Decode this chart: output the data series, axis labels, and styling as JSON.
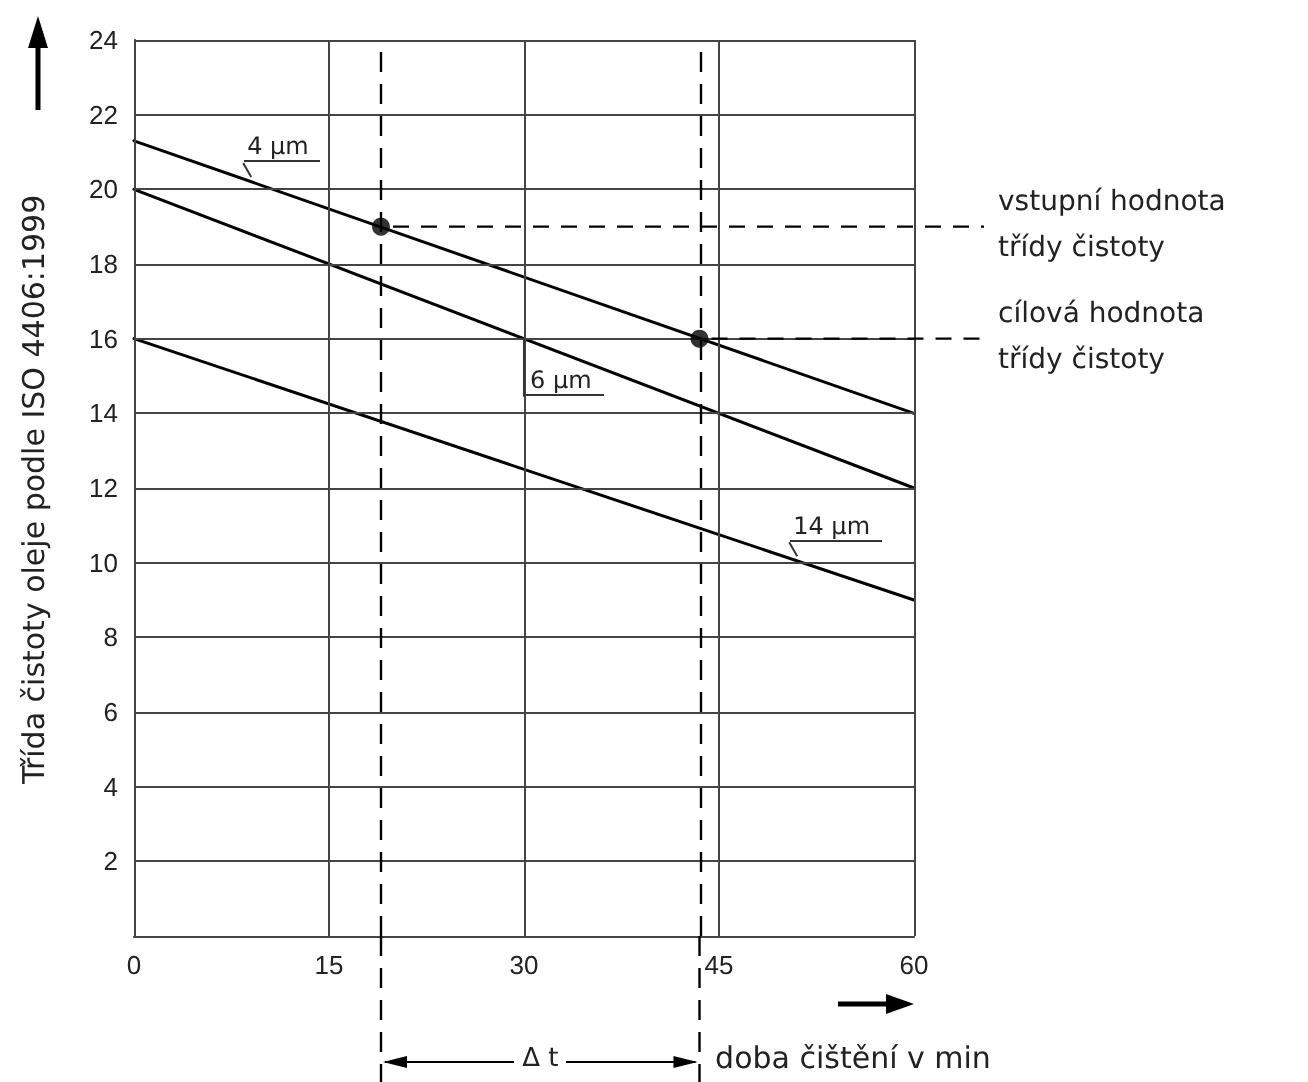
{
  "chart_data": {
    "type": "line",
    "xlabel": "doba čištění v min",
    "ylabel": "Třída čistoty oleje podle ISO 4406:1999",
    "xlim": [
      0,
      60
    ],
    "ylim": [
      0,
      24
    ],
    "xticks": [
      0,
      15,
      30,
      45,
      60
    ],
    "yticks": [
      {
        "value": 0,
        "label": null
      },
      2,
      4,
      6,
      8,
      10,
      12,
      14,
      16,
      18,
      20,
      22,
      24
    ],
    "grid": true,
    "marker": "none",
    "line_style": "solid",
    "series": [
      {
        "name": "4 µm",
        "color": "#000000",
        "x": [
          0,
          60
        ],
        "values": [
          21.3,
          14
        ]
      },
      {
        "name": "6 µm",
        "color": "#000000",
        "x": [
          0,
          60
        ],
        "values": [
          20,
          12
        ]
      },
      {
        "name": "14 µm",
        "color": "#000000",
        "x": [
          0,
          60
        ],
        "values": [
          16,
          9
        ]
      },
      {
        "type": "scatter",
        "marker": "circle",
        "color": "#000000",
        "x": [
          19,
          43.5
        ],
        "values": [
          19,
          16
        ]
      }
    ],
    "ref_lines": [
      {
        "axis": "x",
        "value": 19,
        "color": "#000000",
        "line_style": "dashed"
      },
      {
        "axis": "x",
        "value": 43.5,
        "color": "#000000",
        "line_style": "dashed"
      }
    ],
    "annotations": [
      {
        "text": "vstupní hodnota třídy čistoty",
        "x": 19,
        "y": 19
      },
      {
        "text": "cílová hodnota třídy čistoty",
        "x": 43.5,
        "y": 16
      },
      "Δ t"
    ]
  }
}
